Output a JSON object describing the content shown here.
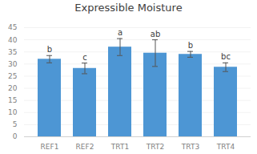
{
  "chart_data": {
    "type": "bar",
    "title": "Expressible Moisture",
    "categories": [
      "REF1",
      "REF2",
      "TRT1",
      "TRT2",
      "TRT3",
      "TRT4"
    ],
    "values": [
      32.0,
      28.2,
      37.0,
      34.5,
      34.0,
      28.7
    ],
    "errors": [
      1.5,
      2.2,
      3.5,
      5.5,
      1.2,
      1.8
    ],
    "annotations": [
      "b",
      "c",
      "a",
      "ab",
      "b",
      "bc"
    ],
    "color": "#4d96d4",
    "ylim": [
      0,
      45
    ],
    "yticks": [
      0,
      5,
      10,
      15,
      20,
      25,
      30,
      35,
      40,
      45
    ],
    "grid": true
  }
}
